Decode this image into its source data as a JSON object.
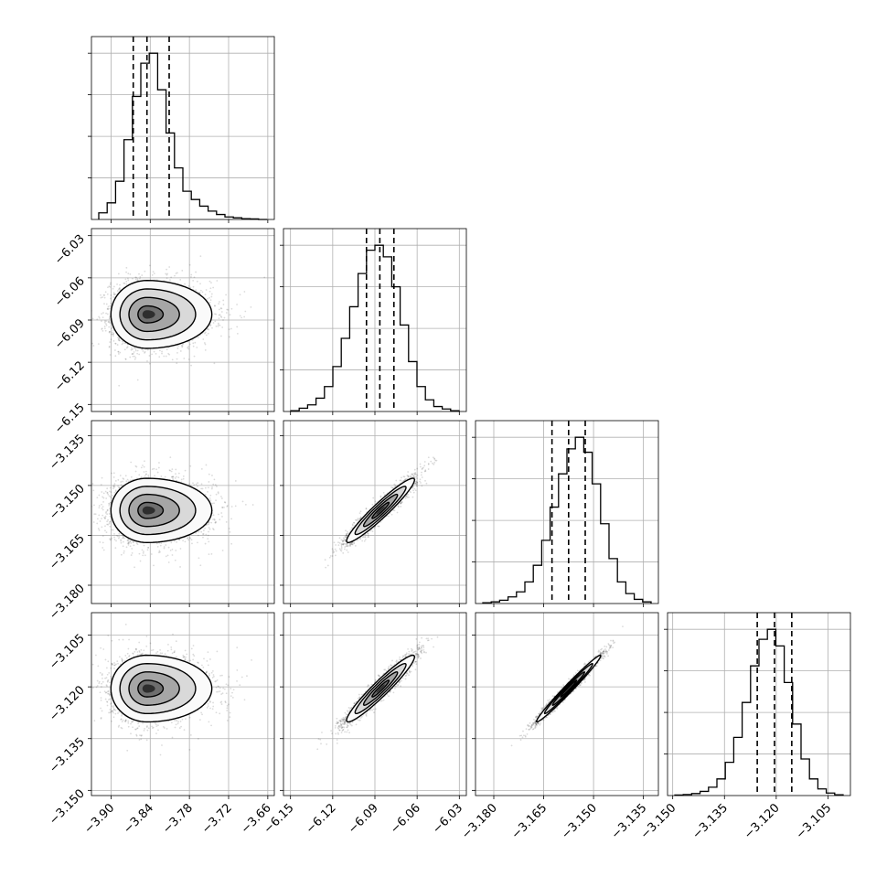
{
  "chart_data": {
    "type": "corner",
    "title": "",
    "parameters": [
      {
        "index": 0,
        "range": [
          -3.93,
          -3.65
        ],
        "ticks": [
          -3.9,
          -3.84,
          -3.78,
          -3.72,
          -3.66
        ],
        "tick_labels": [
          "−3.90",
          "−3.84",
          "−3.78",
          "−3.72",
          "−3.66"
        ],
        "quantiles": [
          -3.866,
          -3.845,
          -3.811
        ],
        "mean": -3.845,
        "sd": 0.024,
        "skew_right": 1.8,
        "hist_counts": [
          0.04,
          0.1,
          0.23,
          0.48,
          0.74,
          0.94,
          1.0,
          0.78,
          0.52,
          0.31,
          0.17,
          0.12,
          0.08,
          0.05,
          0.03,
          0.015,
          0.01,
          0.005,
          0.003,
          0.0
        ]
      },
      {
        "index": 1,
        "range": [
          -6.155,
          -6.025
        ],
        "ticks": [
          -6.15,
          -6.12,
          -6.09,
          -6.06,
          -6.03
        ],
        "tick_labels": [
          "−6.15",
          "−6.12",
          "−6.09",
          "−6.06",
          "−6.03"
        ],
        "quantiles": [
          -6.096,
          -6.0865,
          -6.0765
        ],
        "mean": -6.086,
        "sd": 0.0105,
        "skew_right": 1.0,
        "hist_counts": [
          0.005,
          0.02,
          0.04,
          0.08,
          0.15,
          0.27,
          0.44,
          0.63,
          0.83,
          0.97,
          1.0,
          0.93,
          0.75,
          0.52,
          0.3,
          0.15,
          0.07,
          0.03,
          0.015,
          0.005
        ]
      },
      {
        "index": 2,
        "range": [
          -3.1855,
          -3.1305
        ],
        "ticks": [
          -3.18,
          -3.165,
          -3.15,
          -3.135
        ],
        "tick_labels": [
          "−3.180",
          "−3.165",
          "−3.150",
          "−3.135"
        ],
        "quantiles": [
          -3.1625,
          -3.1575,
          -3.1525
        ],
        "mean": -3.1575,
        "sd": 0.0042,
        "skew_right": 1.0,
        "hist_counts": [
          0.005,
          0.01,
          0.02,
          0.04,
          0.07,
          0.13,
          0.23,
          0.38,
          0.58,
          0.78,
          0.93,
          1.0,
          0.91,
          0.72,
          0.48,
          0.27,
          0.13,
          0.06,
          0.025,
          0.01
        ]
      },
      {
        "index": 3,
        "range": [
          -3.1515,
          -3.0985
        ],
        "ticks": [
          -3.15,
          -3.135,
          -3.12,
          -3.105
        ],
        "tick_labels": [
          "−3.150",
          "−3.135",
          "−3.120",
          "−3.105"
        ],
        "quantiles": [
          -3.1255,
          -3.1205,
          -3.1155
        ],
        "mean": -3.1205,
        "sd": 0.0042,
        "skew_right": 1.0,
        "hist_counts": [
          0.003,
          0.006,
          0.012,
          0.025,
          0.05,
          0.1,
          0.2,
          0.35,
          0.56,
          0.78,
          0.94,
          1.0,
          0.9,
          0.68,
          0.43,
          0.22,
          0.1,
          0.04,
          0.015,
          0.005
        ]
      }
    ],
    "correlations": {
      "1-0": 0.0,
      "2-0": 0.0,
      "3-0": 0.0,
      "2-1": 0.95,
      "3-1": 0.95,
      "3-2": 0.985
    },
    "grid": true
  }
}
